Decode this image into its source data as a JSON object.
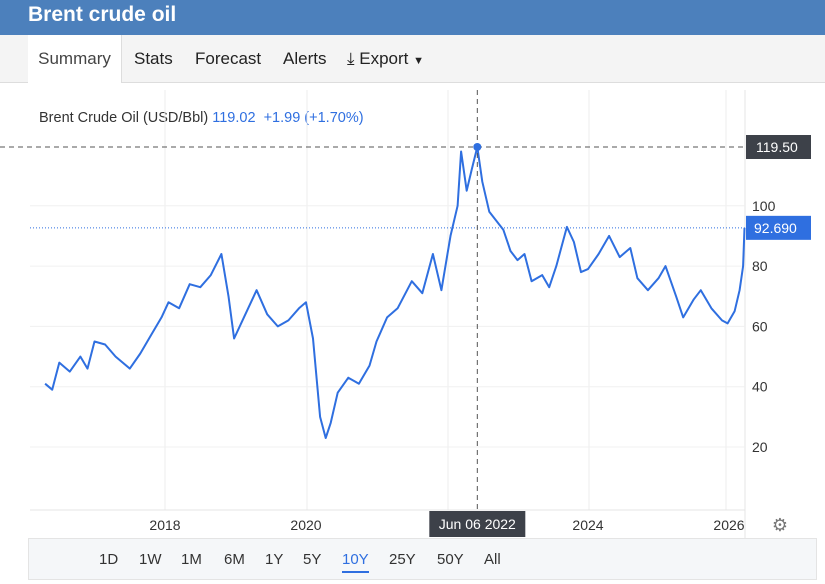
{
  "title": "Brent crude oil",
  "tabs": [
    "Summary",
    "Stats",
    "Forecast",
    "Alerts",
    "Export"
  ],
  "legend": {
    "name": "Brent Crude Oil (USD/Bbl)",
    "price": "119.02",
    "change": "+1.99 (+1.70%)"
  },
  "ranges": [
    "1D",
    "1W",
    "1M",
    "6M",
    "1Y",
    "5Y",
    "10Y",
    "25Y",
    "50Y",
    "All"
  ],
  "active_range": "10Y",
  "crosshair": {
    "date": "Jun 06 2022",
    "value": "119.50"
  },
  "last_label": "92.690",
  "colors": {
    "line": "#2f6fe0",
    "header": "#4c80bc"
  },
  "chart_data": {
    "type": "line",
    "title": "Brent Crude Oil (USD/Bbl)",
    "xlim": [
      2016.2,
      2026.4
    ],
    "ylim": [
      0,
      125
    ],
    "xticks": [
      2018,
      2020,
      2024,
      2026
    ],
    "yticks": [
      20,
      40,
      60,
      80,
      100
    ],
    "series": [
      {
        "name": "Brent Crude Oil",
        "points": [
          [
            2016.3,
            41
          ],
          [
            2016.4,
            39
          ],
          [
            2016.5,
            48
          ],
          [
            2016.65,
            45
          ],
          [
            2016.8,
            50
          ],
          [
            2016.9,
            46
          ],
          [
            2017.0,
            55
          ],
          [
            2017.15,
            54
          ],
          [
            2017.3,
            50
          ],
          [
            2017.5,
            46
          ],
          [
            2017.65,
            51
          ],
          [
            2017.8,
            57
          ],
          [
            2017.95,
            63
          ],
          [
            2018.05,
            68
          ],
          [
            2018.2,
            66
          ],
          [
            2018.35,
            74
          ],
          [
            2018.5,
            73
          ],
          [
            2018.65,
            77
          ],
          [
            2018.8,
            84
          ],
          [
            2018.9,
            70
          ],
          [
            2018.98,
            56
          ],
          [
            2019.1,
            62
          ],
          [
            2019.3,
            72
          ],
          [
            2019.45,
            64
          ],
          [
            2019.6,
            60
          ],
          [
            2019.75,
            62
          ],
          [
            2019.9,
            66
          ],
          [
            2020.0,
            68
          ],
          [
            2020.1,
            56
          ],
          [
            2020.2,
            30
          ],
          [
            2020.28,
            23
          ],
          [
            2020.35,
            28
          ],
          [
            2020.45,
            38
          ],
          [
            2020.6,
            43
          ],
          [
            2020.75,
            41
          ],
          [
            2020.9,
            47
          ],
          [
            2021.0,
            55
          ],
          [
            2021.15,
            63
          ],
          [
            2021.3,
            66
          ],
          [
            2021.5,
            75
          ],
          [
            2021.65,
            71
          ],
          [
            2021.8,
            84
          ],
          [
            2021.92,
            72
          ],
          [
            2022.05,
            90
          ],
          [
            2022.15,
            100
          ],
          [
            2022.2,
            118
          ],
          [
            2022.28,
            105
          ],
          [
            2022.35,
            112
          ],
          [
            2022.43,
            119.5
          ],
          [
            2022.5,
            108
          ],
          [
            2022.6,
            98
          ],
          [
            2022.7,
            95
          ],
          [
            2022.8,
            92
          ],
          [
            2022.9,
            85
          ],
          [
            2023.0,
            82
          ],
          [
            2023.1,
            84
          ],
          [
            2023.2,
            75
          ],
          [
            2023.35,
            77
          ],
          [
            2023.45,
            73
          ],
          [
            2023.55,
            80
          ],
          [
            2023.7,
            93
          ],
          [
            2023.8,
            88
          ],
          [
            2023.9,
            78
          ],
          [
            2024.0,
            79
          ],
          [
            2024.15,
            84
          ],
          [
            2024.3,
            90
          ],
          [
            2024.45,
            83
          ],
          [
            2024.6,
            86
          ],
          [
            2024.7,
            76
          ],
          [
            2024.85,
            72
          ],
          [
            2025.0,
            76
          ],
          [
            2025.1,
            80
          ],
          [
            2025.25,
            70
          ],
          [
            2025.35,
            63
          ],
          [
            2025.5,
            69
          ],
          [
            2025.6,
            72
          ],
          [
            2025.75,
            66
          ],
          [
            2025.9,
            62
          ],
          [
            2025.98,
            61
          ],
          [
            2026.08,
            65
          ],
          [
            2026.15,
            72
          ],
          [
            2026.2,
            80
          ],
          [
            2026.22,
            92.69
          ]
        ]
      }
    ]
  }
}
